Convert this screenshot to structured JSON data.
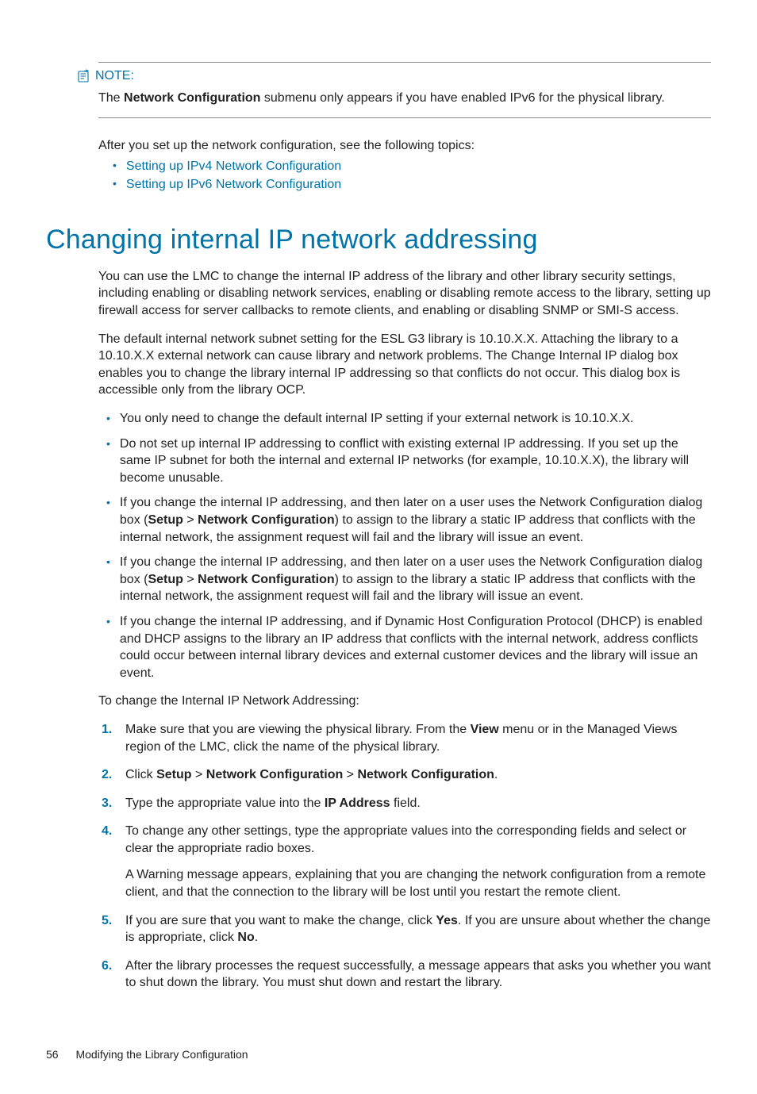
{
  "note": {
    "label": "NOTE:",
    "text_pre": "The ",
    "text_bold": "Network Configuration",
    "text_post": " submenu only appears if you have enabled IPv6 for the physical library."
  },
  "intro": {
    "line": "After you set up the network configuration, see the following topics:",
    "links": [
      "Setting up IPv4 Network Configuration",
      "Setting up IPv6 Network Configuration"
    ]
  },
  "heading": "Changing internal IP network addressing",
  "para1": "You can use the LMC to change the internal IP address of the library and other library security settings, including enabling or disabling network services, enabling or disabling remote access to the library, setting up firewall access for server callbacks to remote clients, and enabling or disabling SNMP or SMI-S access.",
  "para2": "The default internal network subnet setting for the ESL G3 library is 10.10.X.X. Attaching the library to a 10.10.X.X external network can cause library and network problems. The Change Internal IP dialog box enables you to change the library internal IP addressing so that conflicts do not occur. This dialog box is accessible only from the library OCP.",
  "bullets": [
    {
      "html": "You only need to change the default internal IP setting if your external network is 10.10.X.X."
    },
    {
      "html": "Do not set up internal IP addressing to conflict with existing external IP addressing. If you set up the same IP subnet for both the internal and external IP networks (for example, 10.10.X.X), the library will become unusable."
    },
    {
      "html": "If you change the internal IP addressing, and then later on a user uses the Network Configuration dialog box (<b>Setup</b> > <b>Network Configuration</b>) to assign to the library a static IP address that conflicts with the internal network, the assignment request will fail and the library will issue an event."
    },
    {
      "html": "If you change the internal IP addressing, and then later on a user uses the Network Configuration dialog box (<b>Setup</b> > <b>Network Configuration</b>) to assign to the library a static IP address that conflicts with the internal network, the assignment request will fail and the library will issue an event."
    },
    {
      "html": "If you change the internal IP addressing, and if Dynamic Host Configuration Protocol (DHCP) is enabled and DHCP assigns to the library an IP address that conflicts with the internal network, address conflicts could occur between internal library devices and external customer devices and the library will issue an event."
    }
  ],
  "steps_intro": "To change the Internal IP Network Addressing:",
  "steps": [
    {
      "html": "Make sure that you are viewing the physical library. From the <b>View</b> menu or in the Managed Views region of the LMC, click the name of the physical library."
    },
    {
      "html": "Click <b>Setup</b> > <b>Network Configuration</b> > <b>Network Configuration</b>."
    },
    {
      "html": "Type the appropriate value into the <b>IP Address</b> field."
    },
    {
      "html": "To change any other settings, type the appropriate values into the corresponding fields and select or clear the appropriate radio boxes.",
      "extra": "A Warning message appears, explaining that you are changing the network configuration from a remote client, and that the connection to the library will be lost until you restart the remote client."
    },
    {
      "html": "If you are sure that you want to make the change, click <b>Yes</b>. If you are unsure about whether the change is appropriate, click <b>No</b>."
    },
    {
      "html": "After the library processes the request successfully, a message appears that asks you whether you want to shut down the library. You must shut down and restart the library."
    }
  ],
  "footer": {
    "page": "56",
    "section": "Modifying the Library Configuration"
  }
}
